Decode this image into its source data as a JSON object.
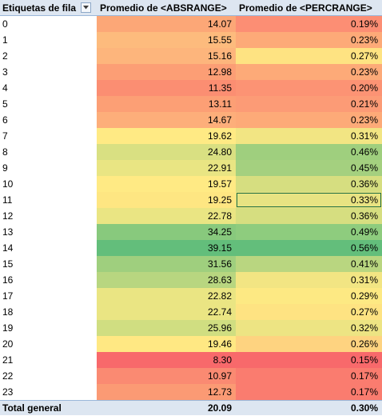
{
  "header": {
    "row_labels": "Etiquetas de fila",
    "col_abs": "Promedio de <ABSRANGE>",
    "col_pct": "Promedio de <PERCRANGE>"
  },
  "rows": [
    {
      "label": "0",
      "abs": "14.07",
      "pct": "0.19%",
      "abs_color": "#fca777",
      "pct_color": "#fc8e74"
    },
    {
      "label": "1",
      "abs": "15.55",
      "pct": "0.23%",
      "abs_color": "#fdbb7d",
      "pct_color": "#fdaa78"
    },
    {
      "label": "2",
      "abs": "15.16",
      "pct": "0.27%",
      "abs_color": "#fdb57c",
      "pct_color": "#fee382"
    },
    {
      "label": "3",
      "abs": "12.98",
      "pct": "0.23%",
      "abs_color": "#fc9e75",
      "pct_color": "#fdaa78"
    },
    {
      "label": "4",
      "abs": "11.35",
      "pct": "0.20%",
      "abs_color": "#fb8e72",
      "pct_color": "#fc9374"
    },
    {
      "label": "5",
      "abs": "13.11",
      "pct": "0.21%",
      "abs_color": "#fc9f75",
      "pct_color": "#fc9b76"
    },
    {
      "label": "6",
      "abs": "14.67",
      "pct": "0.23%",
      "abs_color": "#fdae7a",
      "pct_color": "#fdaa78"
    },
    {
      "label": "7",
      "abs": "19.62",
      "pct": "0.31%",
      "abs_color": "#ffea84",
      "pct_color": "#f2e583"
    },
    {
      "label": "8",
      "abs": "24.80",
      "pct": "0.46%",
      "abs_color": "#d9e082",
      "pct_color": "#9fcf7e"
    },
    {
      "label": "9",
      "abs": "22.91",
      "pct": "0.45%",
      "abs_color": "#e9e583",
      "pct_color": "#a4d07f"
    },
    {
      "label": "10",
      "abs": "19.57",
      "pct": "0.36%",
      "abs_color": "#ffea84",
      "pct_color": "#d6de80"
    },
    {
      "label": "11",
      "abs": "19.25",
      "pct": "0.33%",
      "abs_color": "#fee682",
      "pct_color": "#e8e382"
    },
    {
      "label": "12",
      "abs": "22.78",
      "pct": "0.36%",
      "abs_color": "#eae583",
      "pct_color": "#d6de80"
    },
    {
      "label": "13",
      "abs": "34.25",
      "pct": "0.49%",
      "abs_color": "#88c97d",
      "pct_color": "#8ecc7e"
    },
    {
      "label": "14",
      "abs": "39.15",
      "pct": "0.56%",
      "abs_color": "#63be7b",
      "pct_color": "#63be7b"
    },
    {
      "label": "15",
      "abs": "31.56",
      "pct": "0.41%",
      "abs_color": "#9fcf7e",
      "pct_color": "#b9d680"
    },
    {
      "label": "16",
      "abs": "28.63",
      "pct": "0.31%",
      "abs_color": "#b8d680",
      "pct_color": "#f2e583"
    },
    {
      "label": "17",
      "abs": "22.82",
      "pct": "0.29%",
      "abs_color": "#eae583",
      "pct_color": "#fde983"
    },
    {
      "label": "18",
      "abs": "22.74",
      "pct": "0.27%",
      "abs_color": "#eae583",
      "pct_color": "#fee382"
    },
    {
      "label": "19",
      "abs": "25.96",
      "pct": "0.32%",
      "abs_color": "#d0de81",
      "pct_color": "#ede483"
    },
    {
      "label": "20",
      "abs": "19.46",
      "pct": "0.26%",
      "abs_color": "#ffe883",
      "pct_color": "#fed380"
    },
    {
      "label": "21",
      "abs": "8.30",
      "pct": "0.15%",
      "abs_color": "#f8696b",
      "pct_color": "#f8696b"
    },
    {
      "label": "22",
      "abs": "10.97",
      "pct": "0.17%",
      "abs_color": "#fa8a72",
      "pct_color": "#fa7c6f"
    },
    {
      "label": "23",
      "abs": "12.73",
      "pct": "0.17%",
      "abs_color": "#fb9a74",
      "pct_color": "#fa7c6f"
    }
  ],
  "total": {
    "label": "Total general",
    "abs": "20.09",
    "pct": "0.30%"
  },
  "selected_row_index": 11,
  "icons": {
    "filter": "filter-dropdown-icon"
  }
}
